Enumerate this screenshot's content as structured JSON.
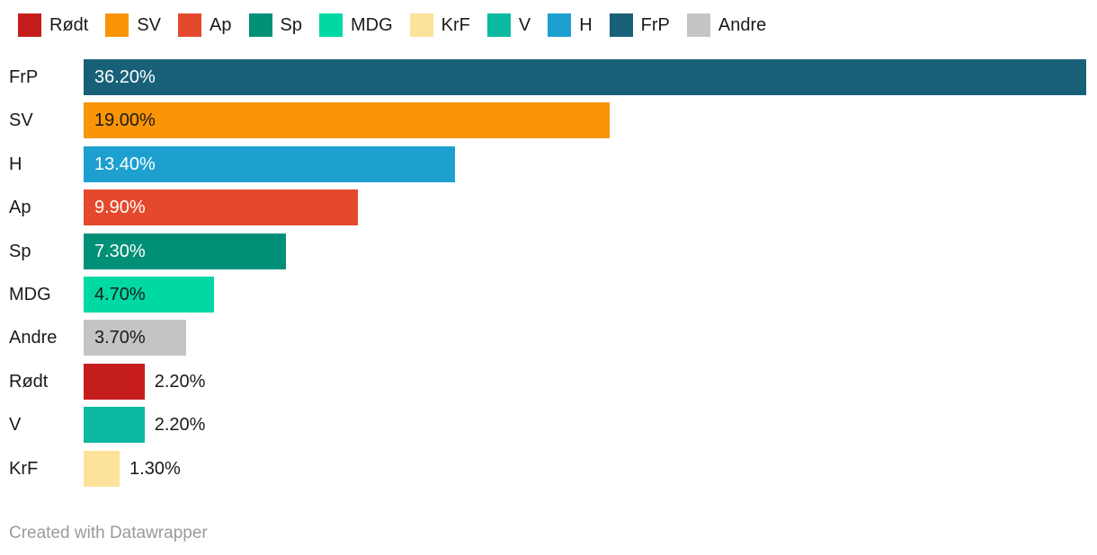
{
  "chart_data": {
    "type": "bar",
    "orientation": "horizontal",
    "unit": "%",
    "xlim": [
      0,
      36.2
    ],
    "grid": false,
    "legend_position": "top",
    "legend_order": [
      "Rødt",
      "SV",
      "Ap",
      "Sp",
      "MDG",
      "KrF",
      "V",
      "H",
      "FrP",
      "Andre"
    ],
    "categories": [
      "FrP",
      "SV",
      "H",
      "Ap",
      "Sp",
      "MDG",
      "Andre",
      "Rødt",
      "V",
      "KrF"
    ],
    "values": [
      36.2,
      19.0,
      13.4,
      9.9,
      7.3,
      4.7,
      3.7,
      2.2,
      2.2,
      1.3
    ],
    "value_labels": [
      "36.20%",
      "19.00%",
      "13.40%",
      "9.90%",
      "7.30%",
      "4.70%",
      "3.70%",
      "2.20%",
      "2.20%",
      "1.30%"
    ],
    "colors": {
      "Rødt": "#c51d1c",
      "SV": "#f89406",
      "Ap": "#e4492d",
      "Sp": "#009077",
      "MDG": "#00d9a3",
      "KrF": "#fde29b",
      "V": "#0cb9a1",
      "H": "#1da0cf",
      "FrP": "#186078",
      "Andre": "#c4c4c4"
    }
  },
  "footer": {
    "credit": "Created with Datawrapper"
  }
}
